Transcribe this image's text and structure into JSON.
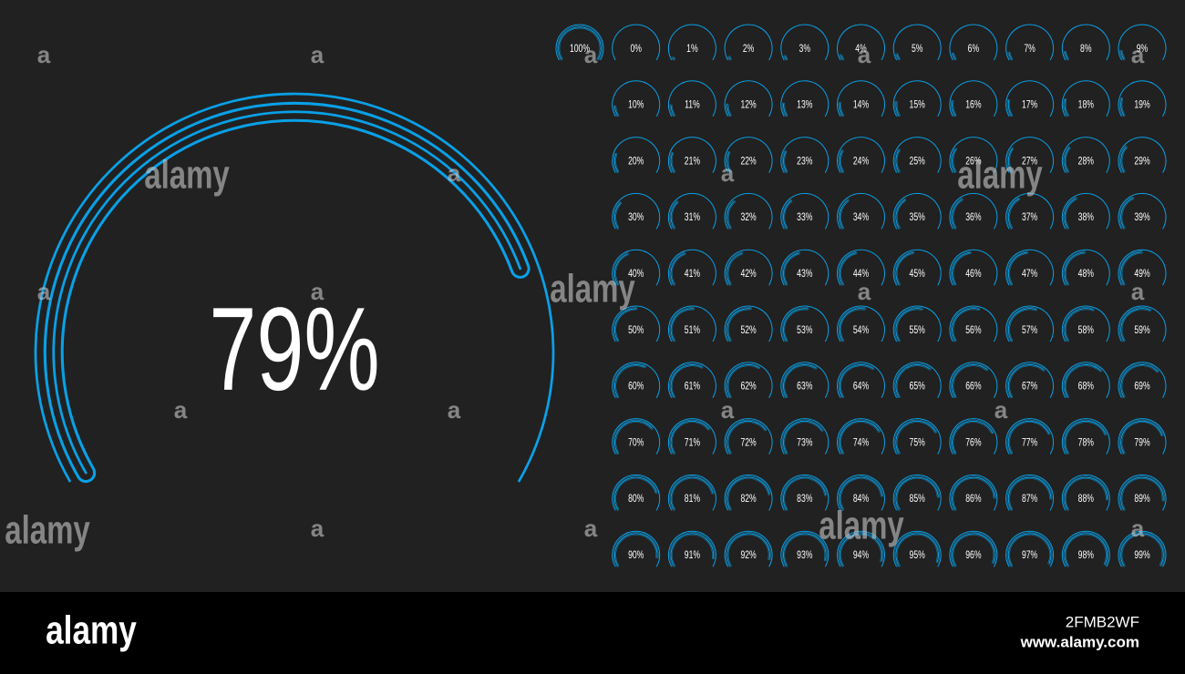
{
  "main_gauge": {
    "value": 79,
    "label": "79%"
  },
  "gauges": [
    {
      "value": 100,
      "label": "100%"
    },
    {
      "value": 0,
      "label": "0%"
    },
    {
      "value": 1,
      "label": "1%"
    },
    {
      "value": 2,
      "label": "2%"
    },
    {
      "value": 3,
      "label": "3%"
    },
    {
      "value": 4,
      "label": "4%"
    },
    {
      "value": 5,
      "label": "5%"
    },
    {
      "value": 6,
      "label": "6%"
    },
    {
      "value": 7,
      "label": "7%"
    },
    {
      "value": 8,
      "label": "8%"
    },
    {
      "value": 9,
      "label": "9%"
    },
    {
      "value": 10,
      "label": "10%"
    },
    {
      "value": 11,
      "label": "11%"
    },
    {
      "value": 12,
      "label": "12%"
    },
    {
      "value": 13,
      "label": "13%"
    },
    {
      "value": 14,
      "label": "14%"
    },
    {
      "value": 15,
      "label": "15%"
    },
    {
      "value": 16,
      "label": "16%"
    },
    {
      "value": 17,
      "label": "17%"
    },
    {
      "value": 18,
      "label": "18%"
    },
    {
      "value": 19,
      "label": "19%"
    },
    {
      "value": 20,
      "label": "20%"
    },
    {
      "value": 21,
      "label": "21%"
    },
    {
      "value": 22,
      "label": "22%"
    },
    {
      "value": 23,
      "label": "23%"
    },
    {
      "value": 24,
      "label": "24%"
    },
    {
      "value": 25,
      "label": "25%"
    },
    {
      "value": 26,
      "label": "26%"
    },
    {
      "value": 27,
      "label": "27%"
    },
    {
      "value": 28,
      "label": "28%"
    },
    {
      "value": 29,
      "label": "29%"
    },
    {
      "value": 30,
      "label": "30%"
    },
    {
      "value": 31,
      "label": "31%"
    },
    {
      "value": 32,
      "label": "32%"
    },
    {
      "value": 33,
      "label": "33%"
    },
    {
      "value": 34,
      "label": "34%"
    },
    {
      "value": 35,
      "label": "35%"
    },
    {
      "value": 36,
      "label": "36%"
    },
    {
      "value": 37,
      "label": "37%"
    },
    {
      "value": 38,
      "label": "38%"
    },
    {
      "value": 39,
      "label": "39%"
    },
    {
      "value": 40,
      "label": "40%"
    },
    {
      "value": 41,
      "label": "41%"
    },
    {
      "value": 42,
      "label": "42%"
    },
    {
      "value": 43,
      "label": "43%"
    },
    {
      "value": 44,
      "label": "44%"
    },
    {
      "value": 45,
      "label": "45%"
    },
    {
      "value": 46,
      "label": "46%"
    },
    {
      "value": 47,
      "label": "47%"
    },
    {
      "value": 48,
      "label": "48%"
    },
    {
      "value": 49,
      "label": "49%"
    },
    {
      "value": 50,
      "label": "50%"
    },
    {
      "value": 51,
      "label": "51%"
    },
    {
      "value": 52,
      "label": "52%"
    },
    {
      "value": 53,
      "label": "53%"
    },
    {
      "value": 54,
      "label": "54%"
    },
    {
      "value": 55,
      "label": "55%"
    },
    {
      "value": 56,
      "label": "56%"
    },
    {
      "value": 57,
      "label": "57%"
    },
    {
      "value": 58,
      "label": "58%"
    },
    {
      "value": 59,
      "label": "59%"
    },
    {
      "value": 60,
      "label": "60%"
    },
    {
      "value": 61,
      "label": "61%"
    },
    {
      "value": 62,
      "label": "62%"
    },
    {
      "value": 63,
      "label": "63%"
    },
    {
      "value": 64,
      "label": "64%"
    },
    {
      "value": 65,
      "label": "65%"
    },
    {
      "value": 66,
      "label": "66%"
    },
    {
      "value": 67,
      "label": "67%"
    },
    {
      "value": 68,
      "label": "68%"
    },
    {
      "value": 69,
      "label": "69%"
    },
    {
      "value": 70,
      "label": "70%"
    },
    {
      "value": 71,
      "label": "71%"
    },
    {
      "value": 72,
      "label": "72%"
    },
    {
      "value": 73,
      "label": "73%"
    },
    {
      "value": 74,
      "label": "74%"
    },
    {
      "value": 75,
      "label": "75%"
    },
    {
      "value": 76,
      "label": "76%"
    },
    {
      "value": 77,
      "label": "77%"
    },
    {
      "value": 78,
      "label": "78%"
    },
    {
      "value": 79,
      "label": "79%"
    },
    {
      "value": 80,
      "label": "80%"
    },
    {
      "value": 81,
      "label": "81%"
    },
    {
      "value": 82,
      "label": "82%"
    },
    {
      "value": 83,
      "label": "83%"
    },
    {
      "value": 84,
      "label": "84%"
    },
    {
      "value": 85,
      "label": "85%"
    },
    {
      "value": 86,
      "label": "86%"
    },
    {
      "value": 87,
      "label": "87%"
    },
    {
      "value": 88,
      "label": "88%"
    },
    {
      "value": 89,
      "label": "89%"
    },
    {
      "value": 90,
      "label": "90%"
    },
    {
      "value": 91,
      "label": "91%"
    },
    {
      "value": 92,
      "label": "92%"
    },
    {
      "value": 93,
      "label": "93%"
    },
    {
      "value": 94,
      "label": "94%"
    },
    {
      "value": 95,
      "label": "95%"
    },
    {
      "value": 96,
      "label": "96%"
    },
    {
      "value": 97,
      "label": "97%"
    },
    {
      "value": 98,
      "label": "98%"
    },
    {
      "value": 99,
      "label": "99%"
    }
  ],
  "watermarks": [
    "alamy",
    "alamy",
    "alamy",
    "alamy",
    "alamy"
  ],
  "watermark_marks": [
    "a",
    "a",
    "a",
    "a",
    "a",
    "a",
    "a",
    "a",
    "a",
    "a",
    "a",
    "a",
    "a",
    "a",
    "a",
    "a",
    "a",
    "a"
  ],
  "footer": {
    "logo": "alamy",
    "image_id": "2FMB2WF",
    "url": "www.alamy.com"
  }
}
